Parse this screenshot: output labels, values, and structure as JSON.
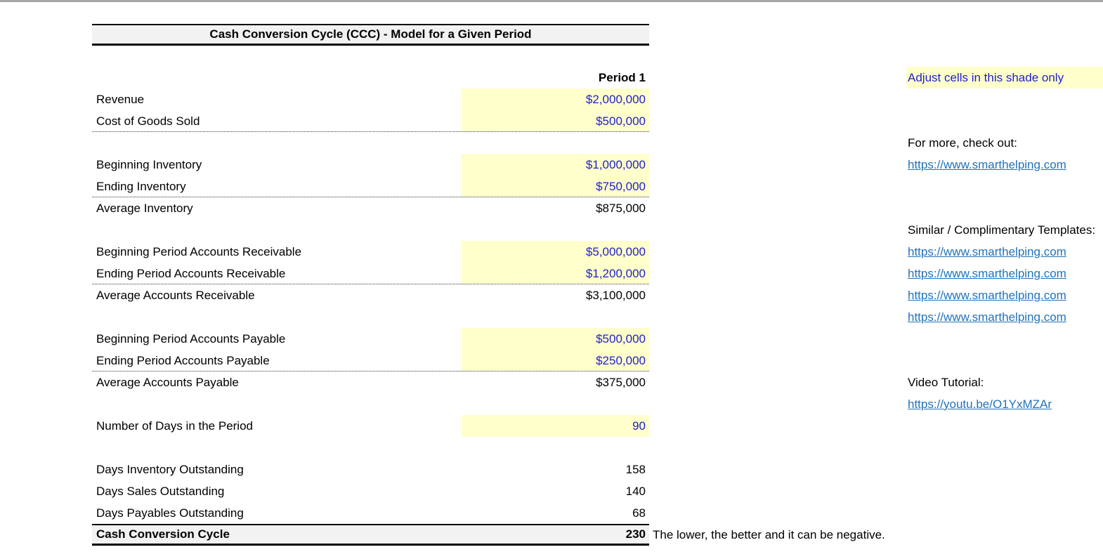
{
  "title": "Cash Conversion Cycle (CCC) - Model for a Given Period",
  "table": {
    "period_header": "Period 1",
    "rows": [
      {
        "type": "header",
        "label": "",
        "value": "Period 1"
      },
      {
        "type": "input",
        "label": "Revenue",
        "value": "$2,000,000"
      },
      {
        "type": "input",
        "label": "Cost of Goods Sold",
        "value": "$500,000",
        "dotted_bottom": true
      },
      {
        "type": "spacer",
        "label": "",
        "value": ""
      },
      {
        "type": "input",
        "label": "Beginning Inventory",
        "value": "$1,000,000"
      },
      {
        "type": "input",
        "label": "Ending Inventory",
        "value": "$750,000",
        "dotted_bottom": true
      },
      {
        "type": "calc",
        "label": "Average Inventory",
        "value": "$875,000"
      },
      {
        "type": "spacer",
        "label": "",
        "value": ""
      },
      {
        "type": "input",
        "label": "Beginning Period Accounts Receivable",
        "value": "$5,000,000"
      },
      {
        "type": "input",
        "label": "Ending Period Accounts Receivable",
        "value": "$1,200,000",
        "dotted_bottom": true
      },
      {
        "type": "calc",
        "label": "Average Accounts Receivable",
        "value": "$3,100,000"
      },
      {
        "type": "spacer",
        "label": "",
        "value": ""
      },
      {
        "type": "input",
        "label": "Beginning Period Accounts Payable",
        "value": "$500,000"
      },
      {
        "type": "input",
        "label": "Ending Period Accounts Payable",
        "value": "$250,000",
        "dotted_bottom": true
      },
      {
        "type": "calc",
        "label": "Average Accounts Payable",
        "value": "$375,000"
      },
      {
        "type": "spacer",
        "label": "",
        "value": ""
      },
      {
        "type": "input",
        "label": "Number of Days in the Period",
        "value": "90"
      },
      {
        "type": "spacer",
        "label": "",
        "value": ""
      },
      {
        "type": "calc",
        "label": "Days Inventory Outstanding",
        "value": "158"
      },
      {
        "type": "calc",
        "label": "Days Sales Outstanding",
        "value": "140"
      },
      {
        "type": "calc",
        "label": "Days Payables Outstanding",
        "value": "68"
      },
      {
        "type": "total",
        "label": "Cash Conversion Cycle",
        "value": "230"
      }
    ]
  },
  "ccc_note": "The lower, the better and it can be negative.",
  "sidebar": {
    "adjust_note": "Adjust cells in this shade only",
    "more_label": "For more, check out:",
    "more_link": "https://www.smarthelping.com",
    "similar_label": "Similar / Complimentary Templates:",
    "similar_links": [
      "https://www.smarthelping.com",
      "https://www.smarthelping.com",
      "https://www.smarthelping.com",
      "https://www.smarthelping.com"
    ],
    "video_label": "Video Tutorial:",
    "video_link": "https://youtu.be/O1YxMZAr"
  },
  "colors": {
    "input_cell_bg": "#ffffcc",
    "input_cell_fg": "#1f1fc8",
    "hyperlink": "#2272b9",
    "header_fill": "#f2f2f2",
    "border": "#000000"
  }
}
